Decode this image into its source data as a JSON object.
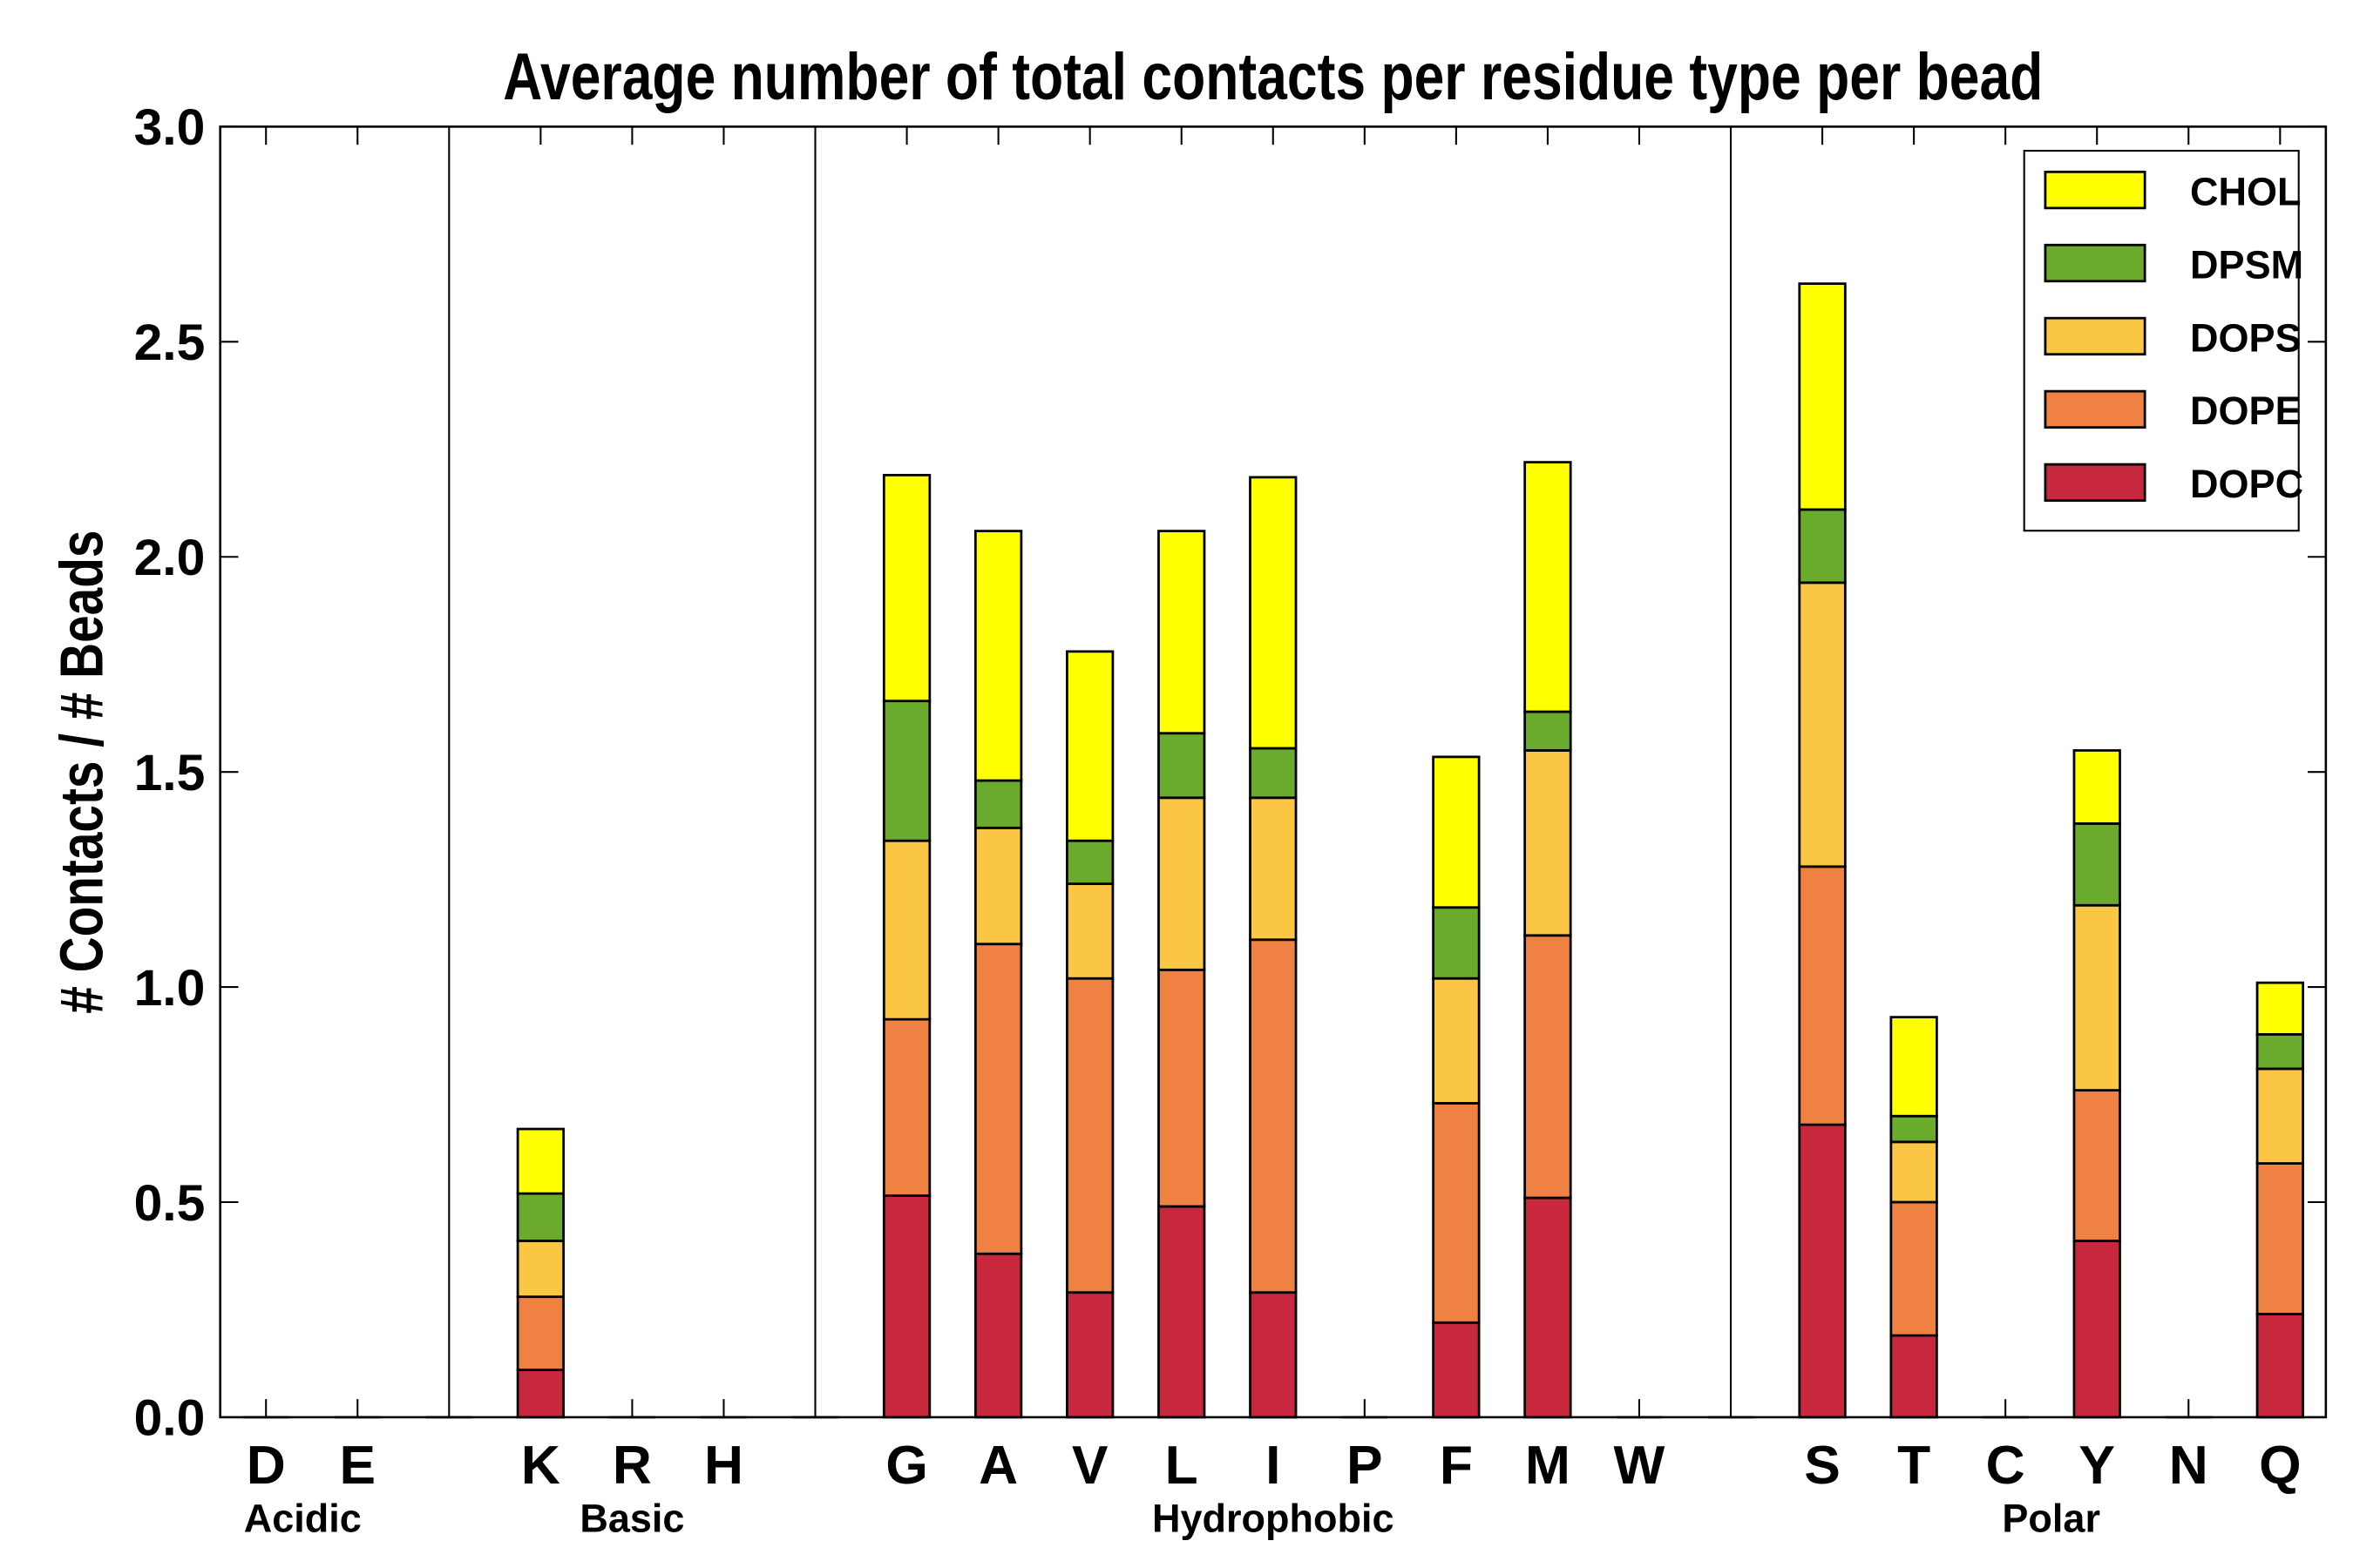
{
  "chart_data": {
    "type": "bar",
    "stacked": true,
    "title": "Average number of total contacts per residue type per bead",
    "xlabel": "",
    "ylabel": "# Contacts / # Beads",
    "ylim": [
      0,
      3.0
    ],
    "yticks": [
      "0.0",
      "0.5",
      "1.0",
      "1.5",
      "2.0",
      "2.5",
      "3.0"
    ],
    "ytick_values": [
      0,
      0.5,
      1.0,
      1.5,
      2.0,
      2.5,
      3.0
    ],
    "categories": [
      "D",
      "E",
      "",
      "K",
      "R",
      "H",
      "",
      "G",
      "A",
      "V",
      "L",
      "I",
      "P",
      "F",
      "M",
      "W",
      "",
      "S",
      "T",
      "C",
      "Y",
      "N",
      "Q"
    ],
    "group_separators_after_slot": [
      2,
      6,
      16
    ],
    "groups": [
      {
        "label": "Acidic",
        "center_slot": 0.4
      },
      {
        "label": "Basic",
        "center_slot": 4
      },
      {
        "label": "Hydrophobic",
        "center_slot": 11
      },
      {
        "label": "Polar",
        "center_slot": 19.5
      }
    ],
    "legend_placement": "top-right",
    "series": [
      {
        "name": "DOPC",
        "color": "#c8283e",
        "values": [
          0,
          0,
          0,
          0.11,
          0,
          0,
          0,
          0.515,
          0.38,
          0.29,
          0.49,
          0.29,
          0,
          0.22,
          0.51,
          0,
          0,
          0.68,
          0.19,
          0,
          0.41,
          0,
          0.24
        ]
      },
      {
        "name": "DOPE",
        "color": "#ef8142",
        "values": [
          0,
          0,
          0,
          0.17,
          0,
          0,
          0,
          0.41,
          0.72,
          0.73,
          0.55,
          0.82,
          0,
          0.51,
          0.61,
          0,
          0,
          0.6,
          0.31,
          0,
          0.35,
          0,
          0.35
        ]
      },
      {
        "name": "DOPS",
        "color": "#fcc645",
        "values": [
          0,
          0,
          0,
          0.13,
          0,
          0,
          0,
          0.415,
          0.27,
          0.22,
          0.4,
          0.33,
          0,
          0.29,
          0.43,
          0,
          0,
          0.66,
          0.14,
          0,
          0.43,
          0,
          0.22
        ]
      },
      {
        "name": "DPSM",
        "color": "#6aaa2c",
        "values": [
          0,
          0,
          0,
          0.11,
          0,
          0,
          0,
          0.325,
          0.11,
          0.1,
          0.15,
          0.115,
          0,
          0.165,
          0.09,
          0,
          0,
          0.17,
          0.06,
          0,
          0.19,
          0,
          0.08
        ]
      },
      {
        "name": "CHOL",
        "color": "#ffff00",
        "values": [
          0,
          0,
          0,
          0.15,
          0,
          0,
          0,
          0.525,
          0.58,
          0.44,
          0.47,
          0.63,
          0,
          0.35,
          0.58,
          0,
          0,
          0.525,
          0.23,
          0,
          0.17,
          0,
          0.12
        ]
      }
    ]
  }
}
